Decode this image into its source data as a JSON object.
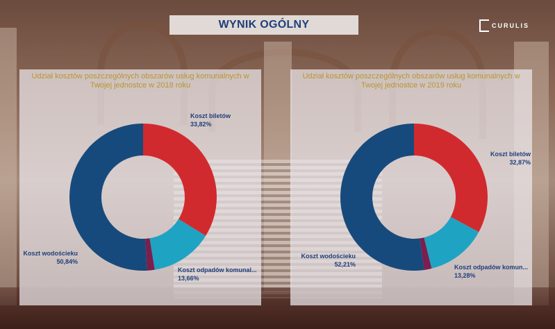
{
  "page_title": "WYNIK OGÓLNY",
  "logo_text": "CURULIS",
  "colors": {
    "bilety": "#d12a2e",
    "odpady": "#1fa3c3",
    "other": "#7a1f4e",
    "woda": "#174a7c",
    "title": "#1f3f7a",
    "subtitle": "#b8962f"
  },
  "chart_data": [
    {
      "type": "pie",
      "donut": true,
      "title": "Udział kosztów poszczególnych obszarów usług komunalnych w Twojej jednostce w 2018 roku",
      "slices": [
        {
          "name": "Koszt biletów",
          "value": 33.82,
          "value_label": "33,82%",
          "color": "#d12a2e"
        },
        {
          "name": "Koszt odpadów komunal...",
          "value": 13.66,
          "value_label": "13,66%",
          "color": "#1fa3c3"
        },
        {
          "name": "",
          "value": 1.68,
          "value_label": "",
          "color": "#7a1f4e"
        },
        {
          "name": "Koszt wodościeku",
          "value": 50.84,
          "value_label": "50,84%",
          "color": "#174a7c"
        }
      ]
    },
    {
      "type": "pie",
      "donut": true,
      "title": "Udział kosztów poszczególnych obszarów usług komunalnych w Twojej jednostce w 2019 roku",
      "slices": [
        {
          "name": "Koszt biletów",
          "value": 32.87,
          "value_label": "32,87%",
          "color": "#d12a2e"
        },
        {
          "name": "Koszt odpadów komun...",
          "value": 13.28,
          "value_label": "13,28%",
          "color": "#1fa3c3"
        },
        {
          "name": "",
          "value": 1.64,
          "value_label": "",
          "color": "#7a1f4e"
        },
        {
          "name": "Koszt wodościeku",
          "value": 52.21,
          "value_label": "52,21%",
          "color": "#174a7c"
        }
      ]
    }
  ]
}
